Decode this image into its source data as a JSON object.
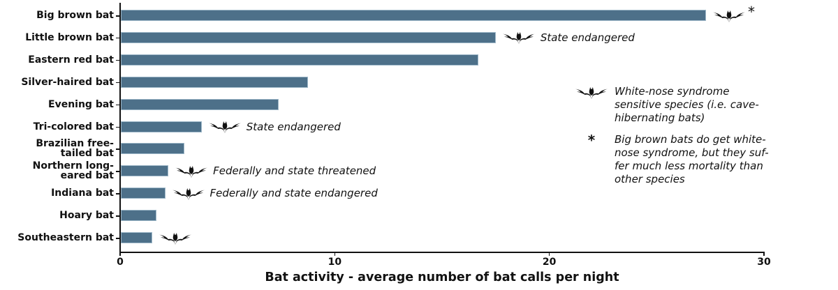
{
  "chart_data": {
    "type": "bar",
    "orientation": "horizontal",
    "title": "",
    "xlabel": "Bat activity - average number of bat calls per night",
    "ylabel": "",
    "xlim": [
      0,
      30
    ],
    "xticks": [
      0,
      10,
      20,
      30
    ],
    "grid": false,
    "bar_color": "#4d7089",
    "categories": [
      "Big brown bat",
      "Little brown bat",
      "Eastern red bat",
      "Silver-haired bat",
      "Evening bat",
      "Tri-colored bat",
      "Brazilian free-\ntailed bat",
      "Northern long-\neared bat",
      "Indiana bat",
      "Hoary bat",
      "Southeastern bat"
    ],
    "values": [
      27.3,
      17.5,
      16.7,
      8.75,
      7.4,
      3.8,
      3.0,
      2.25,
      2.1,
      1.7,
      1.5
    ],
    "white_nose_sensitive": [
      true,
      true,
      false,
      false,
      false,
      true,
      false,
      true,
      true,
      false,
      true
    ],
    "annotations": [
      "*",
      "State endangered",
      "",
      "",
      "",
      "State endangered",
      "",
      "Federally and state threatened",
      "Federally and state endangered",
      "",
      ""
    ],
    "legend": {
      "position": "right",
      "entries": [
        {
          "symbol": "bat-icon",
          "text": "White-nose syndrome\nsensitive species (i.e. cave-\nhibernating bats)"
        },
        {
          "symbol": "*",
          "text": "Big brown bats do get white-\nnose syndrome, but they suf-\nfer much less mortality than\nother species"
        }
      ]
    }
  }
}
